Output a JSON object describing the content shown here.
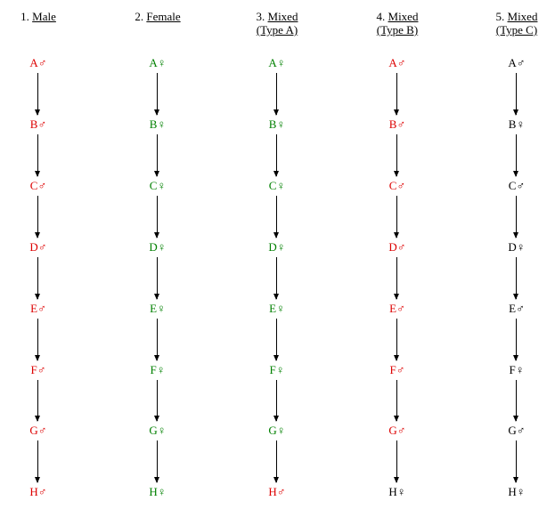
{
  "colors": {
    "male": "#dd0000",
    "female": "#008000",
    "neutral": "#000000"
  },
  "columns": [
    {
      "number": "1.",
      "title": "Male",
      "subtitle": "",
      "nodes": [
        {
          "label": "A♂",
          "color": "male"
        },
        {
          "label": "B♂",
          "color": "male"
        },
        {
          "label": "C♂",
          "color": "male"
        },
        {
          "label": "D♂",
          "color": "male"
        },
        {
          "label": "E♂",
          "color": "male"
        },
        {
          "label": "F♂",
          "color": "male"
        },
        {
          "label": "G♂",
          "color": "male"
        },
        {
          "label": "H♂",
          "color": "male"
        }
      ]
    },
    {
      "number": "2.",
      "title": "Female",
      "subtitle": "",
      "nodes": [
        {
          "label": "A♀",
          "color": "female"
        },
        {
          "label": "B♀",
          "color": "female"
        },
        {
          "label": "C♀",
          "color": "female"
        },
        {
          "label": "D♀",
          "color": "female"
        },
        {
          "label": "E♀",
          "color": "female"
        },
        {
          "label": "F♀",
          "color": "female"
        },
        {
          "label": "G♀",
          "color": "female"
        },
        {
          "label": "H♀",
          "color": "female"
        }
      ]
    },
    {
      "number": "3.",
      "title": "Mixed",
      "subtitle": "(Type A)",
      "nodes": [
        {
          "label": "A♀",
          "color": "female"
        },
        {
          "label": "B♀",
          "color": "female"
        },
        {
          "label": "C♀",
          "color": "female"
        },
        {
          "label": "D♀",
          "color": "female"
        },
        {
          "label": "E♀",
          "color": "female"
        },
        {
          "label": "F♀",
          "color": "female"
        },
        {
          "label": "G♀",
          "color": "female"
        },
        {
          "label": "H♂",
          "color": "male"
        }
      ]
    },
    {
      "number": "4.",
      "title": "Mixed",
      "subtitle": "(Type B)",
      "nodes": [
        {
          "label": "A♂",
          "color": "male"
        },
        {
          "label": "B♂",
          "color": "male"
        },
        {
          "label": "C♂",
          "color": "male"
        },
        {
          "label": "D♂",
          "color": "male"
        },
        {
          "label": "E♂",
          "color": "male"
        },
        {
          "label": "F♂",
          "color": "male"
        },
        {
          "label": "G♂",
          "color": "male"
        },
        {
          "label": "H♀",
          "color": "neutral"
        }
      ]
    },
    {
      "number": "5.",
      "title": "Mixed",
      "subtitle": "(Type C)",
      "nodes": [
        {
          "label": "A♂",
          "color": "neutral"
        },
        {
          "label": "B♀",
          "color": "neutral"
        },
        {
          "label": "C♂",
          "color": "neutral"
        },
        {
          "label": "D♀",
          "color": "neutral"
        },
        {
          "label": "E♂",
          "color": "neutral"
        },
        {
          "label": "F♀",
          "color": "neutral"
        },
        {
          "label": "G♂",
          "color": "neutral"
        },
        {
          "label": "H♀",
          "color": "neutral"
        }
      ]
    }
  ]
}
